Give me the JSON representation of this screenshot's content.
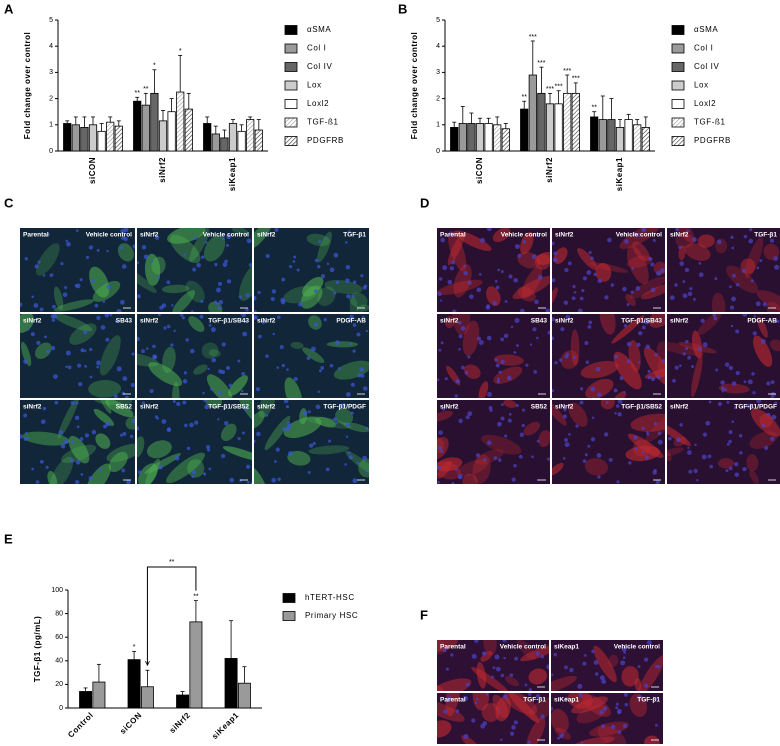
{
  "chart_data": [
    {
      "type": "bar",
      "panel": "A",
      "ylabel": "Fold change over control",
      "categories": [
        "siCON",
        "siNrf2",
        "siKeap1"
      ],
      "ylim": [
        0,
        5
      ],
      "yticks": [
        0,
        1,
        2,
        3,
        4,
        5
      ],
      "series": [
        {
          "name": "αSMA",
          "color": "#000000",
          "values": [
            1.05,
            1.9,
            1.05
          ],
          "errors": [
            0.1,
            0.15,
            0.25
          ],
          "stars": [
            null,
            "**",
            null
          ]
        },
        {
          "name": "Col I",
          "color": "#9a9a9a",
          "values": [
            1.0,
            1.75,
            0.65
          ],
          "errors": [
            0.3,
            0.45,
            0.3
          ],
          "stars": [
            null,
            "**",
            null
          ]
        },
        {
          "name": "Col IV",
          "color": "#666666",
          "values": [
            0.9,
            2.2,
            0.5
          ],
          "errors": [
            0.4,
            0.9,
            0.3
          ],
          "stars": [
            null,
            "*",
            null
          ]
        },
        {
          "name": "Lox",
          "color": "#cccccc",
          "values": [
            1.0,
            1.15,
            1.05
          ],
          "errors": [
            0.3,
            0.4,
            0.15
          ],
          "stars": [
            null,
            null,
            null
          ]
        },
        {
          "name": "Loxl2",
          "color": "#ffffff",
          "values": [
            0.75,
            1.5,
            0.75
          ],
          "errors": [
            0.3,
            0.5,
            0.25
          ],
          "stars": [
            null,
            null,
            null
          ]
        },
        {
          "name": "TGF-ß1",
          "color": "#ffffff",
          "hatch": "#999999",
          "values": [
            1.1,
            2.25,
            1.2
          ],
          "errors": [
            0.2,
            1.4,
            0.1
          ],
          "stars": [
            null,
            "*",
            null
          ]
        },
        {
          "name": "PDGFRB",
          "color": "#ffffff",
          "hatch": "#333333",
          "values": [
            0.95,
            1.6,
            0.8
          ],
          "errors": [
            0.2,
            0.6,
            0.4
          ],
          "stars": [
            null,
            null,
            null
          ]
        }
      ]
    },
    {
      "type": "bar",
      "panel": "B",
      "ylabel": "Fold change over control",
      "categories": [
        "siCON",
        "siNrf2",
        "siKeap1"
      ],
      "ylim": [
        0,
        5
      ],
      "yticks": [
        0,
        1,
        2,
        3,
        4,
        5
      ],
      "series": [
        {
          "name": "αSMA",
          "color": "#000000",
          "values": [
            0.9,
            1.6,
            1.3
          ],
          "errors": [
            0.2,
            0.3,
            0.2
          ],
          "stars": [
            null,
            "**",
            "**"
          ]
        },
        {
          "name": "Col I",
          "color": "#9a9a9a",
          "values": [
            1.05,
            2.9,
            1.2
          ],
          "errors": [
            0.65,
            1.3,
            0.9
          ],
          "stars": [
            null,
            "***",
            null
          ]
        },
        {
          "name": "Col IV",
          "color": "#666666",
          "values": [
            1.05,
            2.2,
            1.2
          ],
          "errors": [
            0.4,
            1.0,
            0.8
          ],
          "stars": [
            null,
            "***",
            null
          ]
        },
        {
          "name": "Lox",
          "color": "#cccccc",
          "values": [
            1.05,
            1.8,
            0.9
          ],
          "errors": [
            0.2,
            0.4,
            0.3
          ],
          "stars": [
            null,
            "***",
            null
          ]
        },
        {
          "name": "Loxl2",
          "color": "#ffffff",
          "values": [
            1.05,
            1.8,
            1.2
          ],
          "errors": [
            0.2,
            0.5,
            0.2
          ],
          "stars": [
            null,
            "***",
            null
          ]
        },
        {
          "name": "TGF-ß1",
          "color": "#ffffff",
          "hatch": "#999999",
          "values": [
            1.0,
            2.2,
            1.0
          ],
          "errors": [
            0.3,
            0.7,
            0.2
          ],
          "stars": [
            null,
            "***",
            null
          ]
        },
        {
          "name": "PDGFRB",
          "color": "#ffffff",
          "hatch": "#333333",
          "values": [
            0.85,
            2.2,
            0.9
          ],
          "errors": [
            0.2,
            0.4,
            0.4
          ],
          "stars": [
            null,
            "***",
            null
          ]
        }
      ]
    },
    {
      "type": "bar",
      "panel": "E",
      "ylabel": "TGF-β1 (pg/mL)",
      "categories": [
        "Control",
        "siCON",
        "siNrf2",
        "siKeap1"
      ],
      "ylim": [
        0,
        100
      ],
      "yticks": [
        0,
        20,
        40,
        60,
        80,
        100
      ],
      "series": [
        {
          "name": "hTERT-HSC",
          "color": "#000000",
          "values": [
            14,
            41,
            11,
            42
          ],
          "errors": [
            3,
            7,
            3,
            32
          ],
          "stars": [
            null,
            "*",
            null,
            null
          ]
        },
        {
          "name": "Primary HSC",
          "color": "#9a9a9a",
          "values": [
            22,
            18,
            73,
            21
          ],
          "errors": [
            15,
            14,
            18,
            14
          ],
          "stars": [
            null,
            null,
            "**",
            null
          ]
        }
      ],
      "bracket": {
        "text": "**",
        "from": [
          1,
          1
        ],
        "to": [
          1,
          2
        ]
      }
    }
  ],
  "image_panels": [
    {
      "panel": "C",
      "base": "#12263a",
      "signal": "#4fb14f",
      "nuclei": "#3a55d0",
      "tiles": [
        {
          "left": "Parental",
          "right": "Vehicle control"
        },
        {
          "left": "siNrf2",
          "right": "Vehicle control"
        },
        {
          "left": "siNrf2",
          "right": "TGF-β1"
        },
        {
          "left": "siNrf2",
          "right": "SB43"
        },
        {
          "left": "siNrf2",
          "right": "TGF-β1/SB43"
        },
        {
          "left": "siNrf2",
          "right": "PDGF-AB"
        },
        {
          "left": "siNrf2",
          "right": "SB52"
        },
        {
          "left": "siNrf2",
          "right": "TGF-β1/SB52"
        },
        {
          "left": "siNrf2",
          "right": "TGF-β1/PDGF"
        }
      ]
    },
    {
      "panel": "D",
      "base": "#2a1030",
      "signal": "#c42a30",
      "nuclei": "#4a40c0",
      "tiles": [
        {
          "left": "Parental",
          "right": "Vehicle control"
        },
        {
          "left": "siNrf2",
          "right": "Vehicle control"
        },
        {
          "left": "siNrf2",
          "right": "TGF-β1"
        },
        {
          "left": "siNrf2",
          "right": "SB43"
        },
        {
          "left": "siNrf2",
          "right": "TGF-β1/SB43"
        },
        {
          "left": "siNrf2",
          "right": "PDGF-AB"
        },
        {
          "left": "siNrf2",
          "right": "SB52"
        },
        {
          "left": "siNrf2",
          "right": "TGF-β1/SB52"
        },
        {
          "left": "siNrf2",
          "right": "TGF-β1/PDGF"
        }
      ]
    },
    {
      "panel": "F",
      "base": "#2e1034",
      "signal": "#c42a30",
      "nuclei": "#4a40c0",
      "tiles": [
        {
          "left": "Parental",
          "right": "Vehicle control"
        },
        {
          "left": "siKeap1",
          "right": "Vehicle control"
        },
        {
          "left": "Parental",
          "right": "TGF-β1"
        },
        {
          "left": "siKeap1",
          "right": "TGF-β1"
        }
      ]
    }
  ]
}
